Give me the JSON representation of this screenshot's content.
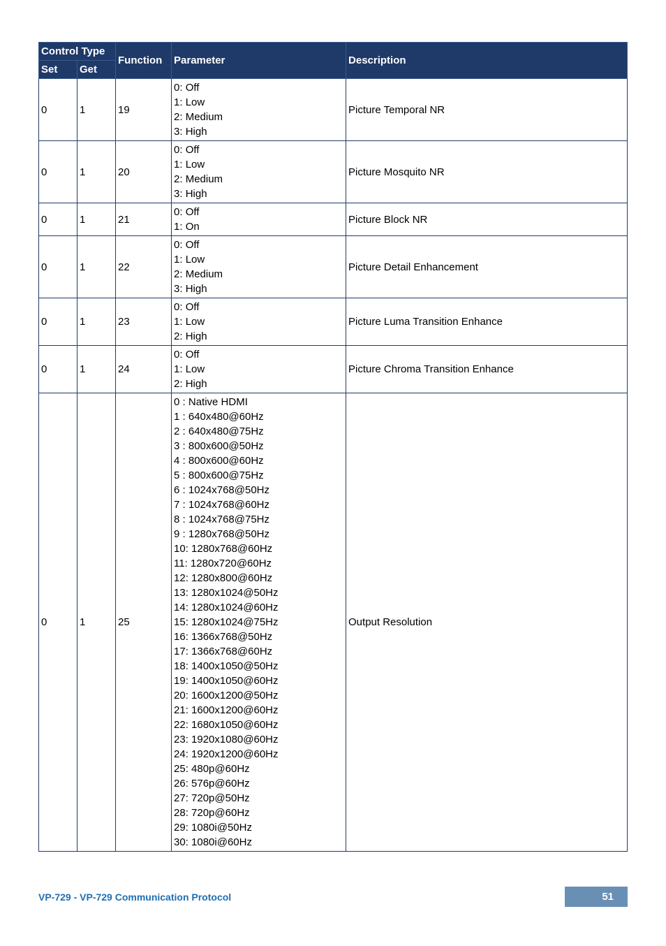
{
  "header": {
    "control_type": "Control Type",
    "set": "Set",
    "get": "Get",
    "function": "Function",
    "parameter": "Parameter",
    "description": "Description"
  },
  "rows": [
    {
      "set": "0",
      "get": "1",
      "func": "19",
      "param": "0: Off\n1: Low\n2: Medium\n3: High",
      "desc": "Picture Temporal NR"
    },
    {
      "set": "0",
      "get": "1",
      "func": "20",
      "param": "0: Off\n1: Low\n2: Medium\n3: High",
      "desc": "Picture Mosquito NR"
    },
    {
      "set": "0",
      "get": "1",
      "func": "21",
      "param": "0: Off\n1: On",
      "desc": "Picture Block NR"
    },
    {
      "set": "0",
      "get": "1",
      "func": "22",
      "param": "0: Off\n1: Low\n2: Medium\n3: High",
      "desc": "Picture Detail Enhancement"
    },
    {
      "set": "0",
      "get": "1",
      "func": "23",
      "param": "0: Off\n1: Low\n2: High",
      "desc": "Picture Luma Transition Enhance"
    },
    {
      "set": "0",
      "get": "1",
      "func": "24",
      "param": "0: Off\n1: Low\n2: High",
      "desc": "Picture Chroma Transition Enhance"
    },
    {
      "set": "0",
      "get": "1",
      "func": "25",
      "param": "0 : Native HDMI\n1 : 640x480@60Hz\n2 : 640x480@75Hz\n3 : 800x600@50Hz\n4 : 800x600@60Hz\n5 : 800x600@75Hz\n6 : 1024x768@50Hz\n7 : 1024x768@60Hz\n8 : 1024x768@75Hz\n9 : 1280x768@50Hz\n10: 1280x768@60Hz\n11: 1280x720@60Hz\n12: 1280x800@60Hz\n13: 1280x1024@50Hz\n14: 1280x1024@60Hz\n15: 1280x1024@75Hz\n16: 1366x768@50Hz\n17: 1366x768@60Hz\n18: 1400x1050@50Hz\n19: 1400x1050@60Hz\n20: 1600x1200@50Hz\n21: 1600x1200@60Hz\n22: 1680x1050@60Hz\n23: 1920x1080@60Hz\n24: 1920x1200@60Hz\n25: 480p@60Hz\n26: 576p@60Hz\n27: 720p@50Hz\n28: 720p@60Hz\n29: 1080i@50Hz\n30: 1080i@60Hz",
      "desc": "Output Resolution"
    }
  ],
  "footer": {
    "left": "VP-729 - VP-729 Communication Protocol",
    "page": "51"
  }
}
